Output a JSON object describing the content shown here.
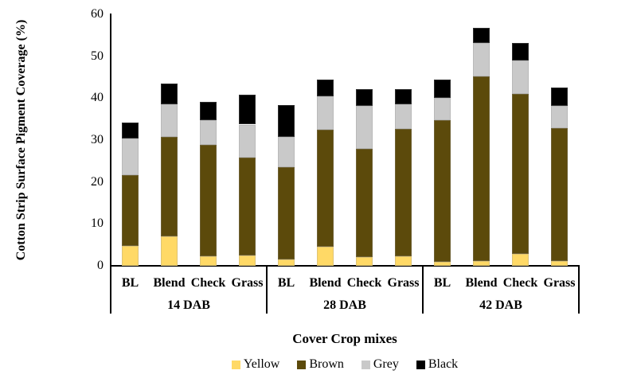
{
  "chart_data": {
    "type": "bar",
    "stacked": true,
    "title": "",
    "ylabel": "Cotton Strip Surface Pigment Coverage (%)",
    "xlabel": "Cover Crop mixes",
    "ylim": [
      0,
      60
    ],
    "yticks": [
      0,
      10,
      20,
      30,
      40,
      50,
      60
    ],
    "grid": false,
    "legend_position": "bottom",
    "categories": [
      "BL",
      "Blend",
      "Check",
      "Grass",
      "BL",
      "Blend",
      "Check",
      "Grass",
      "BL",
      "Blend",
      "Check",
      "Grass"
    ],
    "groups": [
      {
        "label": "14 DAB",
        "categories": [
          "BL",
          "Blend",
          "Check",
          "Grass"
        ]
      },
      {
        "label": "28 DAB",
        "categories": [
          "BL",
          "Blend",
          "Check",
          "Grass"
        ]
      },
      {
        "label": "42 DAB",
        "categories": [
          "BL",
          "Blend",
          "Check",
          "Grass"
        ]
      }
    ],
    "series": [
      {
        "name": "Yellow",
        "color": "#FFD966",
        "values": [
          4.8,
          7.0,
          2.2,
          2.4,
          1.6,
          4.6,
          2.0,
          2.3,
          0.9,
          1.2,
          2.8,
          1.1
        ]
      },
      {
        "name": "Brown",
        "color": "#5C4A0B",
        "values": [
          16.9,
          23.8,
          26.7,
          23.5,
          22.0,
          27.9,
          25.9,
          30.3,
          33.8,
          43.9,
          38.2,
          31.8
        ]
      },
      {
        "name": "Grey",
        "color": "#C9C9C9",
        "values": [
          8.6,
          7.7,
          5.9,
          7.8,
          7.2,
          7.9,
          10.2,
          6.0,
          5.4,
          8.0,
          7.9,
          5.3
        ]
      },
      {
        "name": "Black",
        "color": "#000000",
        "values": [
          3.8,
          5.0,
          4.4,
          7.2,
          7.6,
          4.1,
          4.1,
          3.6,
          4.3,
          3.7,
          4.3,
          4.3
        ]
      }
    ],
    "legend": [
      "Yellow",
      "Brown",
      "Grey",
      "Black"
    ]
  },
  "colors": {
    "background": "#FFFFFF",
    "axis": "#000000",
    "text": "#000000"
  }
}
